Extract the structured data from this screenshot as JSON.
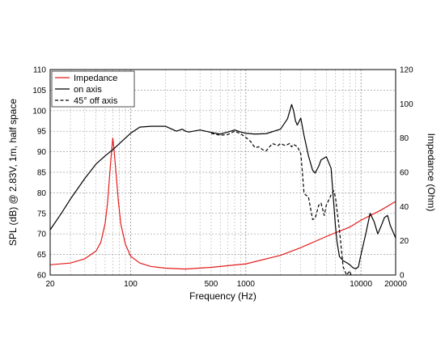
{
  "chart_data": {
    "type": "line",
    "xlabel": "Frequency (Hz)",
    "ylabel": "SPL (dB) @ 2.83V, 1m, half space",
    "y2label": "Impedance (Ohm)",
    "x_scale": "log",
    "xlim": [
      20,
      20000
    ],
    "ylim": [
      60,
      110
    ],
    "y2lim": [
      0,
      120
    ],
    "grid": true,
    "legend_position": "top-left",
    "x_ticks": [
      {
        "value": 20,
        "label": "20"
      },
      {
        "value": 100,
        "label": "100"
      },
      {
        "value": 500,
        "label": "500"
      },
      {
        "value": 1000,
        "label": "1000"
      },
      {
        "value": 10000,
        "label": "10000"
      },
      {
        "value": 20000,
        "label": "20000"
      }
    ],
    "y_ticks": [
      60,
      65,
      70,
      75,
      80,
      85,
      90,
      95,
      100,
      105,
      110
    ],
    "y2_ticks": [
      0,
      20,
      40,
      60,
      80,
      100,
      120
    ],
    "series": [
      {
        "name": "Impedance",
        "axis": "right",
        "color": "#e41a1a",
        "style": "solid",
        "x": [
          20,
          30,
          40,
          50,
          55,
          60,
          63,
          66,
          68,
          70,
          72,
          75,
          78,
          82,
          90,
          100,
          120,
          150,
          200,
          300,
          500,
          1000,
          2000,
          3000,
          5000,
          8000,
          10000,
          15000,
          20000
        ],
        "y": [
          6,
          7,
          9.5,
          14,
          19,
          30,
          42,
          60,
          71,
          80,
          72,
          58,
          44,
          30,
          18,
          11,
          7,
          5,
          4,
          3.5,
          4.5,
          6.5,
          11.5,
          16,
          22.5,
          28,
          32,
          38,
          43
        ]
      },
      {
        "name": "on axis",
        "axis": "left",
        "color": "#000000",
        "style": "solid",
        "x": [
          20,
          25,
          30,
          40,
          50,
          60,
          70,
          80,
          100,
          120,
          150,
          200,
          250,
          280,
          300,
          320,
          350,
          400,
          500,
          600,
          700,
          800,
          900,
          1000,
          1200,
          1500,
          2000,
          2300,
          2500,
          2600,
          2700,
          2800,
          3000,
          3200,
          3500,
          3800,
          4000,
          4300,
          4500,
          5000,
          5500,
          6000,
          6200,
          6500,
          7000,
          7500,
          8000,
          8500,
          9000,
          9500,
          10000,
          11000,
          12000,
          13000,
          14000,
          15000,
          16000,
          17000,
          18000,
          20000
        ],
        "y": [
          71,
          75,
          78.5,
          83.5,
          87,
          89,
          90.5,
          92,
          94.5,
          96,
          96.2,
          96.2,
          95,
          95.5,
          95,
          94.8,
          95,
          95.3,
          94.7,
          94.3,
          94.8,
          95.3,
          94.8,
          94.5,
          94.3,
          94.4,
          95.5,
          98,
          101.5,
          100,
          97.5,
          96.5,
          98.2,
          94,
          89,
          85.5,
          84.8,
          86.5,
          88,
          88.8,
          86,
          72,
          68,
          64.5,
          63.5,
          63,
          62.5,
          61.8,
          61.5,
          62,
          65,
          70,
          75,
          73,
          70,
          72,
          74,
          74.5,
          72,
          69
        ]
      },
      {
        "name": "45° off axis",
        "axis": "left",
        "color": "#000000",
        "style": "dashed",
        "x": [
          500,
          600,
          700,
          800,
          900,
          1000,
          1100,
          1200,
          1300,
          1400,
          1500,
          1700,
          1900,
          2000,
          2200,
          2400,
          2500,
          2600,
          2700,
          2800,
          3000,
          3100,
          3200,
          3300,
          3500,
          3800,
          4000,
          4300,
          4500,
          4800,
          5000,
          5200,
          5500,
          5800,
          6000,
          6500,
          7000,
          7500,
          8000,
          8500,
          9000
        ],
        "y": [
          94.5,
          94,
          94.2,
          95,
          94.4,
          93.5,
          92.5,
          91,
          91.2,
          90.5,
          90.2,
          92,
          91.5,
          92,
          91.5,
          92,
          91.2,
          91.8,
          91.5,
          91.3,
          89.5,
          85,
          80,
          79.5,
          79,
          73.5,
          73.8,
          77,
          77.5,
          74.5,
          77,
          78,
          79.5,
          80.5,
          79,
          71,
          62,
          60,
          61,
          58.5,
          58
        ]
      }
    ]
  }
}
